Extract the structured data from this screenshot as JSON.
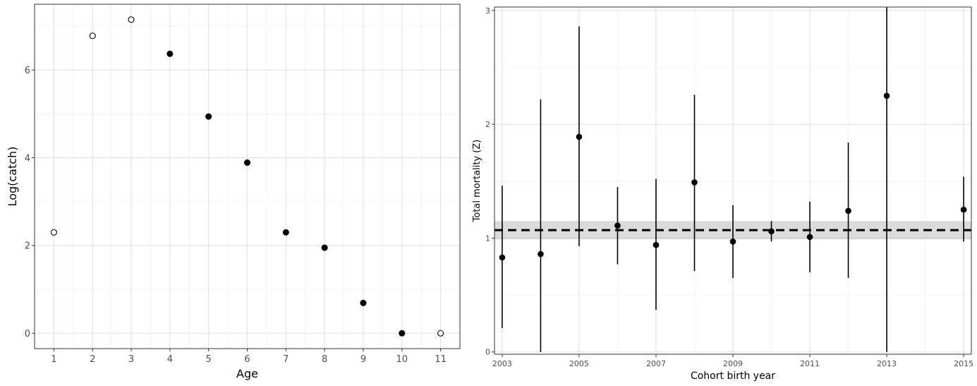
{
  "chart_data": [
    {
      "type": "scatter",
      "xlabel": "Age",
      "ylabel": "Log(catch)",
      "xlim": [
        0.5,
        11.5
      ],
      "ylim": [
        -0.35,
        7.5
      ],
      "x_ticks": [
        1,
        2,
        3,
        4,
        5,
        6,
        7,
        8,
        9,
        10,
        11
      ],
      "y_ticks": [
        0,
        2,
        4,
        6
      ],
      "grid": true,
      "series": [
        {
          "marker": "open-circle",
          "points": [
            {
              "x": 1,
              "y": 2.3
            },
            {
              "x": 2,
              "y": 6.78
            },
            {
              "x": 3,
              "y": 7.15
            },
            {
              "x": 11,
              "y": 0.0
            }
          ]
        },
        {
          "marker": "filled-circle",
          "points": [
            {
              "x": 4,
              "y": 6.37
            },
            {
              "x": 5,
              "y": 4.94
            },
            {
              "x": 6,
              "y": 3.89
            },
            {
              "x": 7,
              "y": 2.3
            },
            {
              "x": 8,
              "y": 1.95
            },
            {
              "x": 9,
              "y": 0.69
            },
            {
              "x": 10,
              "y": 0.0
            }
          ]
        }
      ]
    },
    {
      "type": "scatter",
      "xlabel": "Cohort birth year",
      "ylabel": "Total mortality (Z)",
      "xlim": [
        2002.8,
        2015.2
      ],
      "ylim": [
        -0.02,
        3.03
      ],
      "x_ticks": [
        2003,
        2005,
        2007,
        2009,
        2011,
        2013,
        2015
      ],
      "y_ticks": [
        0,
        1,
        2,
        3
      ],
      "grid": true,
      "points": [
        {
          "x": 2003,
          "y": 0.83,
          "lower": 0.21,
          "upper": 1.46
        },
        {
          "x": 2004,
          "y": 0.86,
          "lower": 0.0,
          "upper": 2.22
        },
        {
          "x": 2005,
          "y": 1.89,
          "lower": 0.93,
          "upper": 2.86
        },
        {
          "x": 2006,
          "y": 1.11,
          "lower": 0.77,
          "upper": 1.45
        },
        {
          "x": 2007,
          "y": 0.94,
          "lower": 0.37,
          "upper": 1.52
        },
        {
          "x": 2008,
          "y": 1.49,
          "lower": 0.71,
          "upper": 2.26
        },
        {
          "x": 2009,
          "y": 0.97,
          "lower": 0.65,
          "upper": 1.29
        },
        {
          "x": 2010,
          "y": 1.06,
          "lower": 0.97,
          "upper": 1.15
        },
        {
          "x": 2011,
          "y": 1.01,
          "lower": 0.7,
          "upper": 1.32
        },
        {
          "x": 2012,
          "y": 1.24,
          "lower": 0.65,
          "upper": 1.84
        },
        {
          "x": 2013,
          "y": 2.25,
          "lower": 0.0,
          "upper": 3.03
        },
        {
          "x": 2015,
          "y": 1.25,
          "lower": 0.97,
          "upper": 1.54
        }
      ],
      "reference_line": {
        "y": 1.07,
        "style": "dashed",
        "band": [
          0.99,
          1.15
        ]
      }
    }
  ]
}
